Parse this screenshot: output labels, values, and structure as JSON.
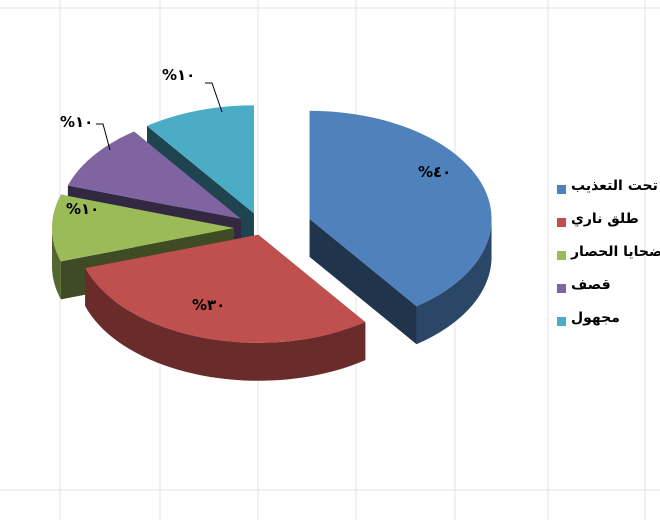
{
  "chart_data": {
    "type": "pie",
    "style": "3d-exploded",
    "categories": [
      "تحت التعذيب",
      "طلق ناري",
      "ضحايا الحصار",
      "قصف",
      "مجهول"
    ],
    "values": [
      40,
      30,
      10,
      10,
      10
    ],
    "data_labels": [
      "%٤٠",
      "%٣٠",
      "%١٠",
      "%١٠",
      "%١٠"
    ],
    "colors": [
      "#4f81bd",
      "#c0504d",
      "#9bbb59",
      "#8064a2",
      "#4bacc6"
    ],
    "legend_position": "right",
    "title": ""
  }
}
